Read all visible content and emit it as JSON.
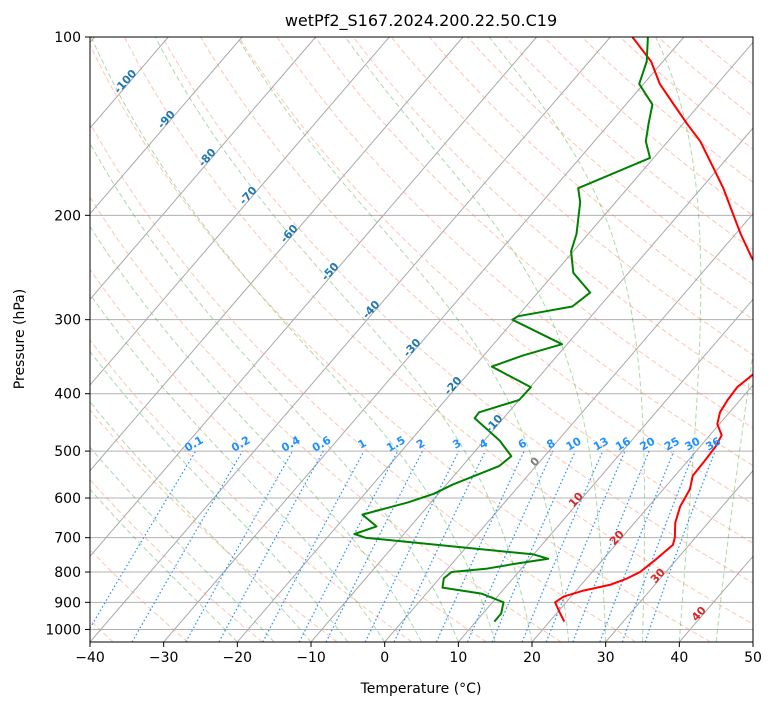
{
  "chart_data": {
    "type": "line",
    "title": "wetPf2_S167.2024.200.22.50.C19",
    "xlabel": "Temperature (°C)",
    "ylabel": "Pressure (hPa)",
    "xlim": [
      -40,
      50
    ],
    "ylim": [
      1050,
      100
    ],
    "y_scale": "log",
    "grid": true,
    "x_ticks": [
      "−40",
      "−30",
      "−20",
      "−10",
      "0",
      "10",
      "20",
      "30",
      "40",
      "50"
    ],
    "y_ticks": [
      "1000",
      "900",
      "800",
      "700",
      "600",
      "500",
      "400",
      "300",
      "200",
      "100"
    ],
    "colors": {
      "temperature": "#ff0000",
      "dewpoint": "#008000",
      "isotherm": "#a9a9a9",
      "dry_adiabat": "#ff7f50",
      "moist_adiabat": "#2ca02c",
      "mixing_ratio": "#1e90ff",
      "isotherm_label": "#1f77b4",
      "warm_label": "#d62728"
    },
    "series": [
      {
        "name": "temperature",
        "points": [
          [
            22,
            970
          ],
          [
            20.5,
            940
          ],
          [
            18.5,
            900
          ],
          [
            19,
            880
          ],
          [
            21,
            860
          ],
          [
            24,
            840
          ],
          [
            25.5,
            820
          ],
          [
            26.5,
            800
          ],
          [
            27.2,
            760
          ],
          [
            27.8,
            720
          ],
          [
            27.2,
            700
          ],
          [
            25.5,
            660
          ],
          [
            24.3,
            620
          ],
          [
            23.6,
            580
          ],
          [
            22.4,
            550
          ],
          [
            22.3,
            520
          ],
          [
            22.1,
            490
          ],
          [
            21.6,
            470
          ],
          [
            19.7,
            450
          ],
          [
            18.7,
            430
          ],
          [
            18.3,
            410
          ],
          [
            18.1,
            390
          ],
          [
            18.8,
            370
          ],
          [
            19.3,
            350
          ],
          [
            18.6,
            330
          ],
          [
            17.9,
            320
          ],
          [
            16.7,
            305
          ],
          [
            13.2,
            280
          ],
          [
            8.8,
            255
          ],
          [
            4.8,
            235
          ],
          [
            0.7,
            215
          ],
          [
            -3.1,
            197
          ],
          [
            -7.0,
            180
          ],
          [
            -11.1,
            165
          ],
          [
            -15.6,
            150
          ],
          [
            -19.5,
            140
          ],
          [
            -23.5,
            130
          ],
          [
            -27.8,
            120
          ],
          [
            -31.6,
            110
          ],
          [
            -37,
            100
          ]
        ]
      },
      {
        "name": "dewpoint",
        "points": [
          [
            12.5,
            970
          ],
          [
            12.5,
            940
          ],
          [
            11.5,
            900
          ],
          [
            7.5,
            870
          ],
          [
            1.5,
            850
          ],
          [
            0.6,
            820
          ],
          [
            0.9,
            800
          ],
          [
            5.2,
            790
          ],
          [
            8.5,
            775
          ],
          [
            12.5,
            760
          ],
          [
            10.0,
            747
          ],
          [
            -14.8,
            700
          ],
          [
            -16.7,
            690
          ],
          [
            -14.6,
            670
          ],
          [
            -17.9,
            640
          ],
          [
            -13.1,
            610
          ],
          [
            -10.6,
            590
          ],
          [
            -9.2,
            570
          ],
          [
            -5.0,
            530
          ],
          [
            -4.5,
            510
          ],
          [
            -7.9,
            480
          ],
          [
            -13.9,
            440
          ],
          [
            -14.0,
            430
          ],
          [
            -10.0,
            410
          ],
          [
            -9.9,
            390
          ],
          [
            -15.0,
            370
          ],
          [
            -17.6,
            360
          ],
          [
            -14.7,
            345
          ],
          [
            -10.7,
            330
          ],
          [
            -20.3,
            300
          ],
          [
            -19.9,
            296
          ],
          [
            -13.7,
            285
          ],
          [
            -12.9,
            270
          ],
          [
            -17.5,
            250
          ],
          [
            -20.3,
            230
          ],
          [
            -21.6,
            215
          ],
          [
            -24.8,
            190
          ],
          [
            -26.7,
            180
          ],
          [
            -20.5,
            160
          ],
          [
            -23.0,
            150
          ],
          [
            -24.7,
            140
          ],
          [
            -26.4,
            130
          ],
          [
            -30.6,
            120
          ],
          [
            -32.2,
            110
          ],
          [
            -34.9,
            100
          ]
        ]
      }
    ],
    "isotherm_labels": [
      "-100",
      "-90",
      "-80",
      "-70",
      "-60",
      "-50",
      "-40",
      "-30",
      "-20",
      "-10",
      "0",
      "10",
      "20",
      "30",
      "40"
    ],
    "mixing_ratio_labels": [
      "0.1",
      "0.2",
      "0.4",
      "0.6",
      "1",
      "1.5",
      "2",
      "3",
      "4",
      "6",
      "8",
      "10",
      "13",
      "16",
      "20",
      "25",
      "30",
      "36"
    ]
  }
}
